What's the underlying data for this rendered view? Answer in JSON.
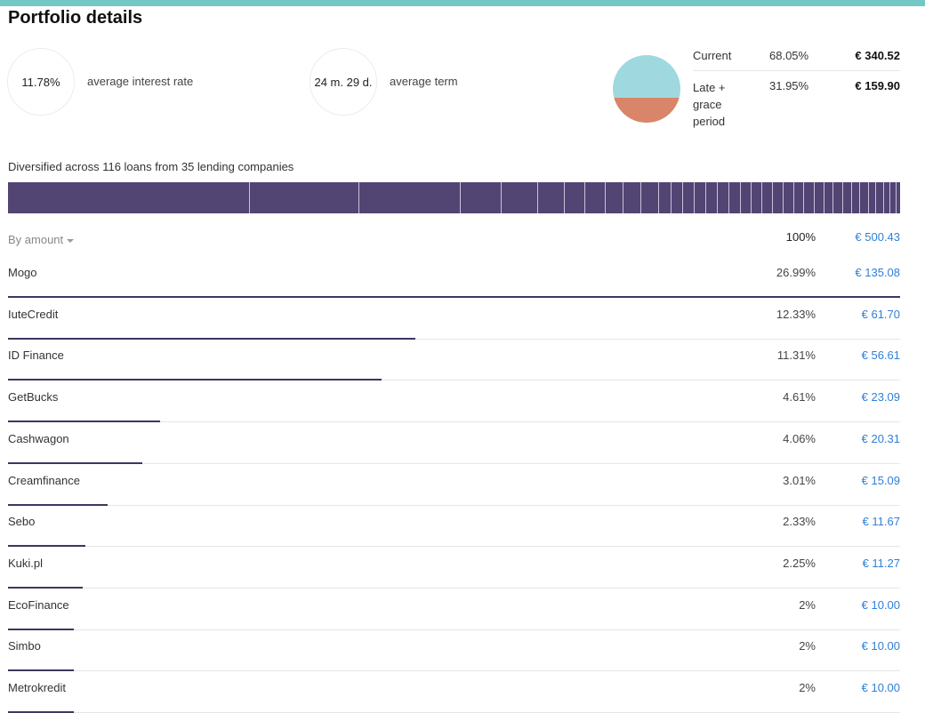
{
  "page": {
    "title": "Portfolio details"
  },
  "stats": {
    "interest": {
      "value": "11.78%",
      "label": "average interest rate"
    },
    "term": {
      "value": "24 m. 29 d.",
      "label": "average term"
    }
  },
  "status_chart": {
    "colors": {
      "current": "#9fd9df",
      "late": "#d88569"
    },
    "items": [
      {
        "label": "Current",
        "pct": "68.05%",
        "amount": "€ 340.52",
        "share": 68.05
      },
      {
        "label_lines": [
          "Late +",
          "grace",
          "period"
        ],
        "pct": "31.95%",
        "amount": "€ 159.90",
        "share": 31.95
      }
    ]
  },
  "distribution": {
    "text": "Diversified across 116 loans from 35 lending companies",
    "bar_color": "#524473"
  },
  "table": {
    "sort_label": "By amount",
    "total_pct": "100%",
    "total_amount": "€ 500.43",
    "rows": [
      {
        "name": "Mogo",
        "pct": "26.99%",
        "amount": "€ 135.08",
        "share": 26.99
      },
      {
        "name": "IuteCredit",
        "pct": "12.33%",
        "amount": "€ 61.70",
        "share": 12.33
      },
      {
        "name": "ID Finance",
        "pct": "11.31%",
        "amount": "€ 56.61",
        "share": 11.31
      },
      {
        "name": "GetBucks",
        "pct": "4.61%",
        "amount": "€ 23.09",
        "share": 4.61
      },
      {
        "name": "Cashwagon",
        "pct": "4.06%",
        "amount": "€ 20.31",
        "share": 4.06
      },
      {
        "name": "Creamfinance",
        "pct": "3.01%",
        "amount": "€ 15.09",
        "share": 3.01
      },
      {
        "name": "Sebo",
        "pct": "2.33%",
        "amount": "€ 11.67",
        "share": 2.33
      },
      {
        "name": "Kuki.pl",
        "pct": "2.25%",
        "amount": "€ 11.27",
        "share": 2.25
      },
      {
        "name": "EcoFinance",
        "pct": "2%",
        "amount": "€ 10.00",
        "share": 2
      },
      {
        "name": "Simbo",
        "pct": "2%",
        "amount": "€ 10.00",
        "share": 2
      },
      {
        "name": "Metrokredit",
        "pct": "2%",
        "amount": "€ 10.00",
        "share": 2
      }
    ]
  }
}
